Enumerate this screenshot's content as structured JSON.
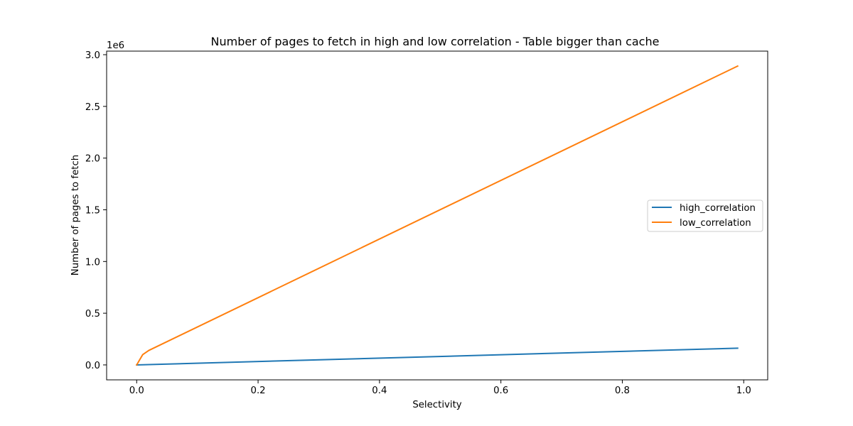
{
  "chart_data": {
    "type": "line",
    "title": "Number of pages to fetch in high and low correlation - Table bigger than cache",
    "xlabel": "Selectivity",
    "ylabel": "Number of pages to fetch",
    "y_offset_label": "1e6",
    "xlim": [
      -0.0495,
      1.0395
    ],
    "ylim": [
      -144500,
      3034500
    ],
    "x_ticks": [
      0.0,
      0.2,
      0.4,
      0.6,
      0.8,
      1.0
    ],
    "x_tick_labels": [
      "0.0",
      "0.2",
      "0.4",
      "0.6",
      "0.8",
      "1.0"
    ],
    "y_ticks": [
      0,
      500000,
      1000000,
      1500000,
      2000000,
      2500000,
      3000000
    ],
    "y_tick_labels": [
      "0.0",
      "0.5",
      "1.0",
      "1.5",
      "2.0",
      "2.5",
      "3.0"
    ],
    "grid": false,
    "legend_position": "center-right",
    "series": [
      {
        "name": "high_correlation",
        "color": "#1f77b4",
        "x": [
          0.0,
          0.99
        ],
        "y": [
          0,
          162000
        ]
      },
      {
        "name": "low_correlation",
        "color": "#ff7f0e",
        "x": [
          0.0,
          0.01,
          0.02,
          0.99
        ],
        "y": [
          0,
          100000,
          140000,
          2890000
        ]
      }
    ]
  }
}
